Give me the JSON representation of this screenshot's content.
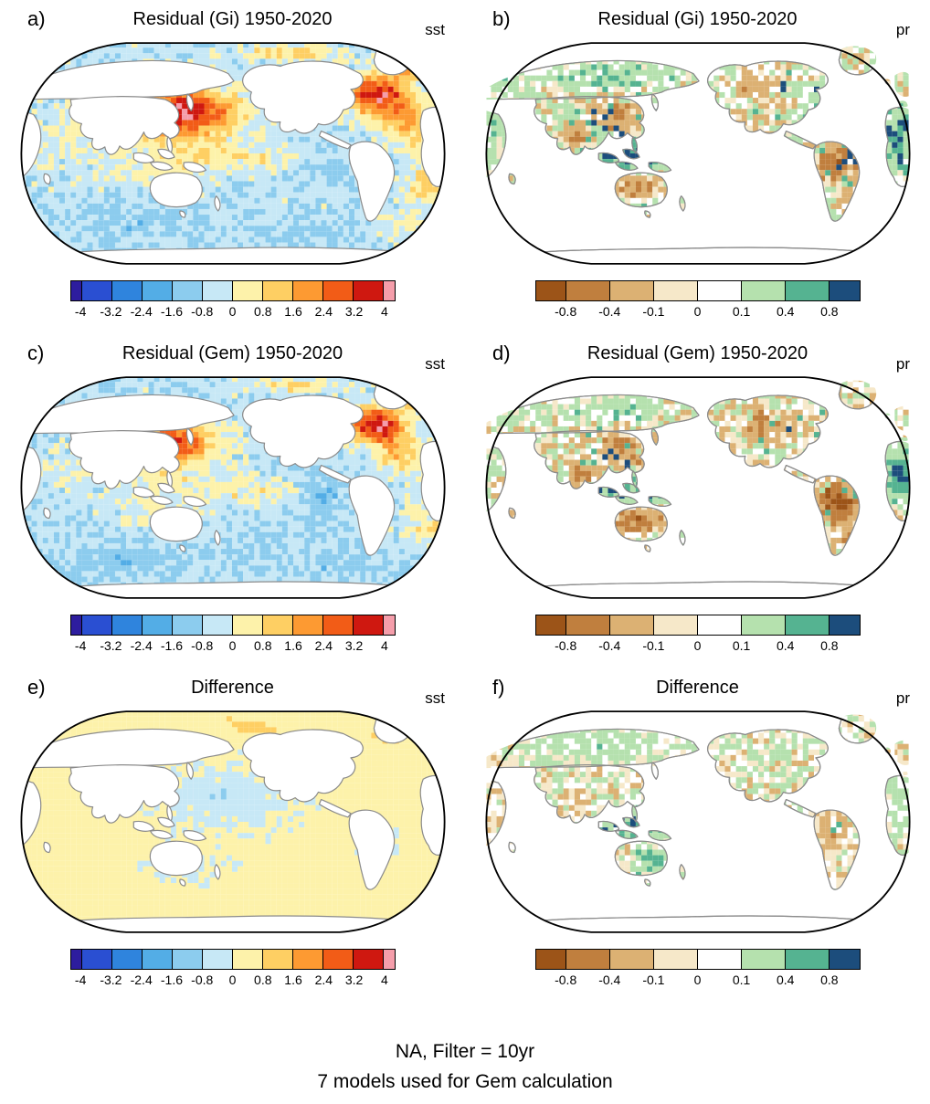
{
  "chart_data": [
    {
      "type": "heatmap",
      "panel": "a",
      "title": "Residual (Gi) 1950-2020",
      "variable": "sst",
      "region": "global map, Pacific-centered",
      "colorbar_ticks": [
        -4,
        -3.2,
        -2.4,
        -1.6,
        -0.8,
        0,
        0.8,
        1.6,
        2.4,
        3.2,
        4
      ]
    },
    {
      "type": "heatmap",
      "panel": "b",
      "title": "Residual (Gi) 1950-2020",
      "variable": "pr",
      "region": "global land, Pacific-centered",
      "colorbar_ticks": [
        -0.8,
        -0.4,
        -0.1,
        0,
        0.1,
        0.4,
        0.8
      ]
    },
    {
      "type": "heatmap",
      "panel": "c",
      "title": "Residual (Gem) 1950-2020",
      "variable": "sst",
      "region": "global map, Pacific-centered",
      "colorbar_ticks": [
        -4,
        -3.2,
        -2.4,
        -1.6,
        -0.8,
        0,
        0.8,
        1.6,
        2.4,
        3.2,
        4
      ]
    },
    {
      "type": "heatmap",
      "panel": "d",
      "title": "Residual (Gem) 1950-2020",
      "variable": "pr",
      "region": "global land, Pacific-centered",
      "colorbar_ticks": [
        -0.8,
        -0.4,
        -0.1,
        0,
        0.1,
        0.4,
        0.8
      ]
    },
    {
      "type": "heatmap",
      "panel": "e",
      "title": "Difference",
      "variable": "sst",
      "region": "global map, Pacific-centered",
      "colorbar_ticks": [
        -4,
        -3.2,
        -2.4,
        -1.6,
        -0.8,
        0,
        0.8,
        1.6,
        2.4,
        3.2,
        4
      ]
    },
    {
      "type": "heatmap",
      "panel": "f",
      "title": "Difference",
      "variable": "pr",
      "region": "global land, Pacific-centered",
      "colorbar_ticks": [
        -0.8,
        -0.4,
        -0.1,
        0,
        0.1,
        0.4,
        0.8
      ]
    }
  ],
  "figure": {
    "caption_line1": "NA, Filter = 10yr",
    "caption_line2": "7 models used for Gem calculation"
  },
  "colorbars": {
    "sst": {
      "colors": [
        "#2d1d9e",
        "#2a4fd2",
        "#2f84dd",
        "#53ade6",
        "#8cccee",
        "#c7e8f6",
        "#fdf2aa",
        "#fecf63",
        "#fd9a32",
        "#f25c17",
        "#cf1810",
        "#f59eab"
      ],
      "ticks": [
        -4,
        -3.2,
        -2.4,
        -1.6,
        -0.8,
        0,
        0.8,
        1.6,
        2.4,
        3.2,
        4
      ]
    },
    "pr": {
      "colors": [
        "#9c5418",
        "#c07f3e",
        "#dcb173",
        "#f6e8c9",
        "#ffffff",
        "#b5e1ae",
        "#55b391",
        "#1c4d7c"
      ],
      "ticks": [
        -0.8,
        -0.4,
        -0.1,
        0,
        0.1,
        0.4,
        0.8
      ]
    }
  },
  "panels": [
    {
      "label": "a)",
      "title": "Residual (Gi) 1950-2020",
      "var": "sst",
      "colorbar": "sst",
      "map": "sst_residual_gi"
    },
    {
      "label": "b)",
      "title": "Residual (Gi) 1950-2020",
      "var": "pr",
      "colorbar": "pr",
      "map": "pr_residual_gi"
    },
    {
      "label": "c)",
      "title": "Residual (Gem) 1950-2020",
      "var": "sst",
      "colorbar": "sst",
      "map": "sst_residual_gem"
    },
    {
      "label": "d)",
      "title": "Residual (Gem) 1950-2020",
      "var": "pr",
      "colorbar": "pr",
      "map": "pr_residual_gem"
    },
    {
      "label": "e)",
      "title": "Difference",
      "var": "sst",
      "colorbar": "sst",
      "map": "sst_diff"
    },
    {
      "label": "f)",
      "title": "Difference",
      "var": "pr",
      "colorbar": "pr",
      "map": "pr_diff"
    }
  ]
}
